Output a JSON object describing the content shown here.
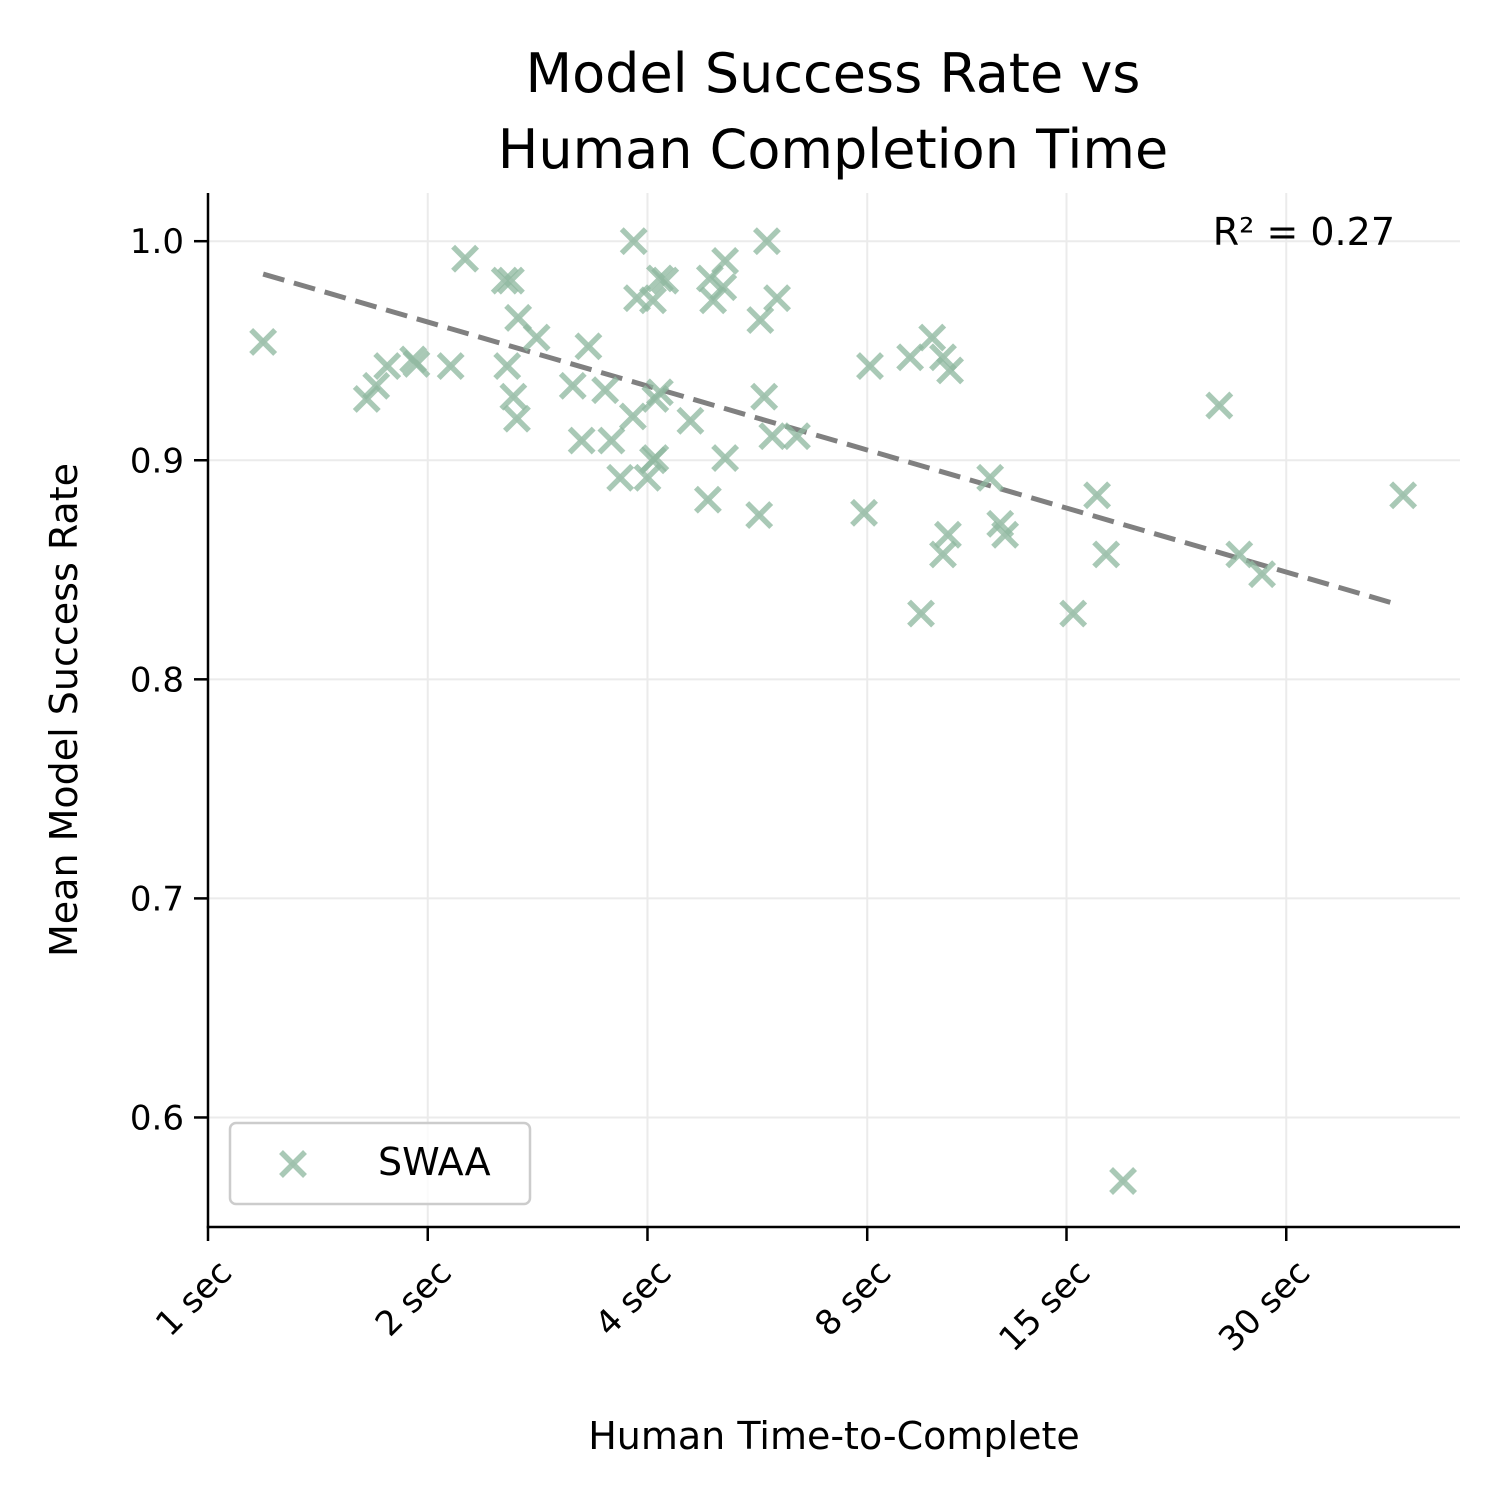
{
  "chart_data": {
    "type": "scatter",
    "title": [
      "Model Success Rate vs",
      "Human Completion Time"
    ],
    "xlabel": "Human Time-to-Complete",
    "ylabel": "Mean Model Success Rate",
    "xscale": "log2",
    "xlim": [
      1,
      51.9
    ],
    "ylim": [
      0.55,
      1.022
    ],
    "x_ticks": [
      {
        "value": 1,
        "label": "1 sec"
      },
      {
        "value": 2,
        "label": "2 sec"
      },
      {
        "value": 4,
        "label": "4 sec"
      },
      {
        "value": 8,
        "label": "8 sec"
      },
      {
        "value": 15,
        "label": "15 sec"
      },
      {
        "value": 30,
        "label": "30 sec"
      }
    ],
    "y_ticks": [
      {
        "value": 0.6,
        "label": "0.6"
      },
      {
        "value": 0.7,
        "label": "0.7"
      },
      {
        "value": 0.8,
        "label": "0.8"
      },
      {
        "value": 0.9,
        "label": "0.9"
      },
      {
        "value": 1.0,
        "label": "1.0"
      }
    ],
    "grid": true,
    "legend": {
      "position": "lower-left",
      "entries": [
        "SWAA"
      ]
    },
    "annotation": "R² = 0.27",
    "series": [
      {
        "name": "SWAA",
        "marker": "x",
        "color": "#8fb8a0",
        "points": [
          [
            1.19,
            0.954
          ],
          [
            1.65,
            0.928
          ],
          [
            1.7,
            0.934
          ],
          [
            1.76,
            0.943
          ],
          [
            1.91,
            0.946
          ],
          [
            1.93,
            0.944
          ],
          [
            2.15,
            0.943
          ],
          [
            2.25,
            0.992
          ],
          [
            2.55,
            0.982
          ],
          [
            2.6,
            0.982
          ],
          [
            2.57,
            0.943
          ],
          [
            2.62,
            0.929
          ],
          [
            2.65,
            0.919
          ],
          [
            2.66,
            0.965
          ],
          [
            2.82,
            0.956
          ],
          [
            3.16,
            0.934
          ],
          [
            3.25,
            0.909
          ],
          [
            3.32,
            0.952
          ],
          [
            3.5,
            0.932
          ],
          [
            3.57,
            0.909
          ],
          [
            3.67,
            0.892
          ],
          [
            3.82,
            0.92
          ],
          [
            3.83,
            1.0
          ],
          [
            3.87,
            0.974
          ],
          [
            4.0,
            0.892
          ],
          [
            4.07,
            0.973
          ],
          [
            4.07,
            0.9
          ],
          [
            4.1,
            0.901
          ],
          [
            4.1,
            0.928
          ],
          [
            4.16,
            0.931
          ],
          [
            4.16,
            0.983
          ],
          [
            4.23,
            0.982
          ],
          [
            4.58,
            0.918
          ],
          [
            4.84,
            0.882
          ],
          [
            4.87,
            0.983
          ],
          [
            4.92,
            0.973
          ],
          [
            5.08,
            0.979
          ],
          [
            5.11,
            0.991
          ],
          [
            5.11,
            0.901
          ],
          [
            5.69,
            0.875
          ],
          [
            5.71,
            0.964
          ],
          [
            5.78,
            0.929
          ],
          [
            5.83,
            1.0
          ],
          [
            5.93,
            0.911
          ],
          [
            6.02,
            0.974
          ],
          [
            6.41,
            0.911
          ],
          [
            7.92,
            0.876
          ],
          [
            8.07,
            0.943
          ],
          [
            9.16,
            0.947
          ],
          [
            9.48,
            0.83
          ],
          [
            9.82,
            0.956
          ],
          [
            10.16,
            0.947
          ],
          [
            10.39,
            0.941
          ],
          [
            10.16,
            0.857
          ],
          [
            10.32,
            0.866
          ],
          [
            11.79,
            0.892
          ],
          [
            12.17,
            0.871
          ],
          [
            12.36,
            0.866
          ],
          [
            15.32,
            0.83
          ],
          [
            16.52,
            0.884
          ],
          [
            17.0,
            0.857
          ],
          [
            17.93,
            0.571
          ],
          [
            24.29,
            0.925
          ],
          [
            25.87,
            0.857
          ],
          [
            27.8,
            0.848
          ],
          [
            43.38,
            0.884
          ]
        ]
      }
    ],
    "trendline": {
      "style": "dashed",
      "color": "#808080",
      "x": [
        1.19,
        42.8
      ],
      "y": [
        0.985,
        0.834
      ]
    }
  }
}
